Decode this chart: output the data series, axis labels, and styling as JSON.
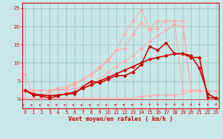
{
  "xlabel": "Vent moyen/en rafales ( km/h )",
  "xlim": [
    -0.3,
    23.3
  ],
  "ylim": [
    -2.5,
    26.5
  ],
  "bg_color": "#c8e8e8",
  "grid_color": "#99bbbb",
  "lines": [
    {
      "x": [
        0,
        1,
        2,
        3,
        4,
        5,
        6,
        7,
        8,
        9,
        10,
        11,
        12,
        13,
        14,
        15,
        16,
        17,
        18,
        19,
        20,
        21,
        22,
        23
      ],
      "y": [
        0.3,
        0.3,
        0.3,
        0.3,
        0.3,
        0.3,
        0.3,
        0.3,
        0.3,
        0.3,
        0.3,
        0.3,
        0.3,
        0.3,
        0.8,
        1.0,
        1.2,
        1.2,
        1.2,
        1.5,
        2.2,
        2.2,
        2.2,
        2.2
      ],
      "color": "#ffaaaa",
      "lw": 0.8,
      "marker": "D",
      "ms": 2.0
    },
    {
      "x": [
        0,
        1,
        2,
        3,
        4,
        5,
        6,
        7,
        8,
        9,
        10,
        11,
        12,
        13,
        14,
        15,
        16,
        17,
        18,
        19,
        20,
        21
      ],
      "y": [
        2.5,
        2.5,
        2.5,
        2.5,
        2.5,
        2.5,
        3.0,
        3.5,
        4.5,
        5.5,
        7.5,
        9.0,
        10.5,
        12.0,
        14.0,
        16.0,
        17.5,
        19.0,
        20.5,
        20.0,
        2.5,
        2.5
      ],
      "color": "#ffaaaa",
      "lw": 0.8,
      "marker": "D",
      "ms": 2.0
    },
    {
      "x": [
        0,
        1,
        2,
        3,
        4,
        5,
        6,
        7,
        8,
        9,
        10,
        11,
        12,
        13,
        14,
        15,
        16,
        17,
        18,
        19,
        20,
        21
      ],
      "y": [
        2.5,
        2.5,
        2.5,
        2.5,
        3.0,
        3.5,
        4.5,
        5.5,
        7.0,
        9.0,
        11.0,
        13.5,
        18.0,
        21.5,
        24.5,
        19.5,
        21.5,
        21.5,
        21.5,
        21.5,
        2.5,
        2.5
      ],
      "color": "#ffaaaa",
      "lw": 0.8,
      "marker": "D",
      "ms": 2.0
    },
    {
      "x": [
        0,
        1,
        2,
        3,
        4,
        5,
        6,
        7,
        8,
        9,
        10,
        11,
        12,
        13,
        14,
        15,
        16,
        17,
        18,
        19,
        20,
        21
      ],
      "y": [
        6.8,
        1.2,
        1.2,
        2.0,
        2.5,
        3.0,
        4.0,
        5.5,
        6.5,
        8.5,
        10.5,
        13.5,
        14.0,
        18.0,
        21.0,
        19.0,
        19.5,
        21.5,
        21.5,
        2.5,
        2.5,
        2.5
      ],
      "color": "#ffaaaa",
      "lw": 0.8,
      "marker": "D",
      "ms": 2.0
    },
    {
      "x": [
        0,
        1,
        2,
        3,
        4,
        5,
        6,
        7,
        8,
        9,
        10,
        11,
        12,
        13,
        14,
        15,
        16,
        17,
        18,
        19,
        20,
        21,
        22,
        23
      ],
      "y": [
        2.5,
        1.2,
        1.0,
        0.3,
        1.0,
        1.5,
        1.5,
        3.5,
        5.0,
        4.5,
        5.5,
        6.5,
        6.5,
        7.5,
        9.5,
        14.5,
        13.5,
        15.5,
        12.5,
        12.5,
        12.0,
        8.5,
        1.5,
        0.3
      ],
      "color": "#cc0000",
      "lw": 1.2,
      "marker": "D",
      "ms": 2.0
    },
    {
      "x": [
        0,
        1,
        2,
        3,
        4,
        5,
        6,
        7,
        8,
        9,
        10,
        11,
        12,
        13,
        14,
        15,
        16,
        17,
        18,
        19,
        20,
        21,
        22,
        23
      ],
      "y": [
        2.5,
        1.5,
        1.2,
        1.0,
        1.2,
        1.5,
        2.0,
        3.0,
        4.0,
        5.0,
        6.0,
        7.0,
        8.0,
        9.0,
        10.0,
        11.0,
        11.5,
        12.0,
        12.5,
        12.5,
        11.5,
        11.5,
        0.5,
        0.3
      ],
      "color": "#cc0000",
      "lw": 1.2,
      "marker": "D",
      "ms": 2.0
    }
  ],
  "yticks": [
    0,
    5,
    10,
    15,
    20,
    25
  ],
  "xticks": [
    0,
    1,
    2,
    3,
    4,
    5,
    6,
    7,
    8,
    9,
    10,
    11,
    12,
    13,
    14,
    15,
    16,
    17,
    18,
    19,
    20,
    21,
    22,
    23
  ],
  "tick_fontsize": 5.0,
  "xlabel_fontsize": 6.0
}
